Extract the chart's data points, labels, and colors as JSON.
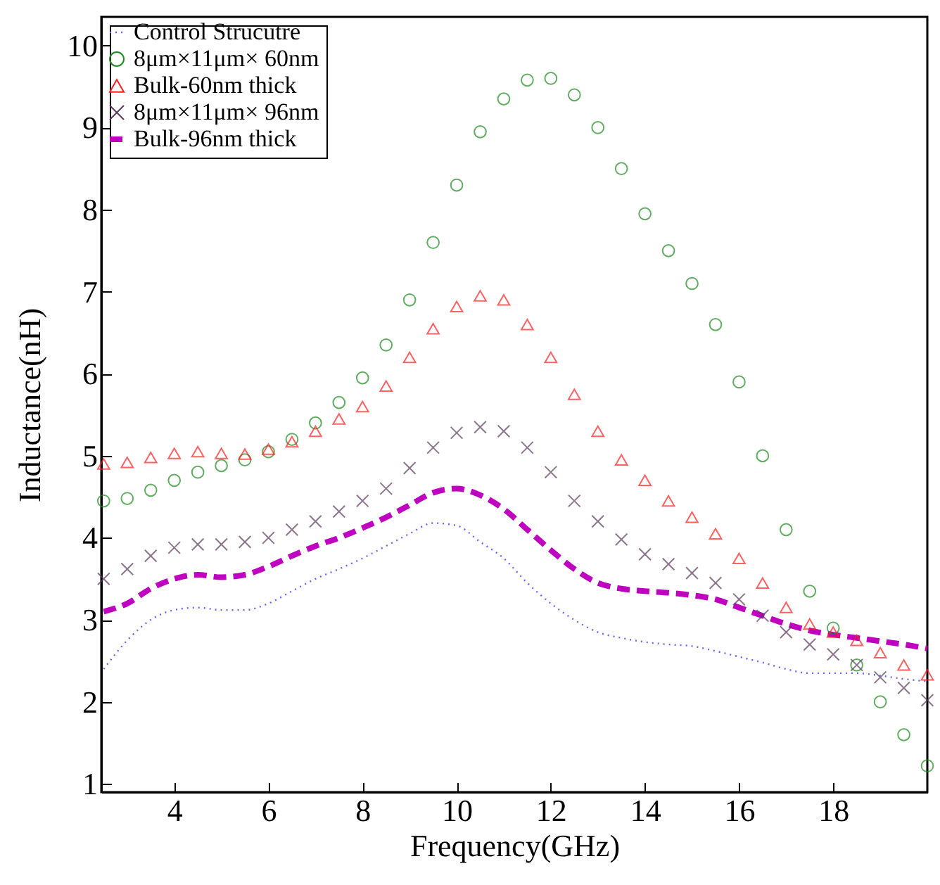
{
  "chart_data": {
    "type": "scatter",
    "xlabel": "Frequency(GHz)",
    "ylabel": "Inductance(nH)",
    "xlim": [
      2.45,
      20
    ],
    "ylim": [
      0.9,
      10.35
    ],
    "xticks": [
      4,
      6,
      8,
      10,
      12,
      14,
      16,
      18
    ],
    "yticks": [
      1,
      2,
      3,
      4,
      5,
      6,
      7,
      8,
      9,
      10
    ],
    "grid": false,
    "legend": "top left",
    "x": [
      2.5,
      3,
      3.5,
      4,
      4.5,
      5,
      5.5,
      6,
      6.5,
      7,
      7.5,
      8,
      8.5,
      9,
      9.5,
      10,
      10.5,
      11,
      11.5,
      12,
      12.5,
      13,
      13.5,
      14,
      14.5,
      15,
      15.5,
      16,
      16.5,
      17,
      17.5,
      18,
      18.5,
      19,
      19.5,
      20
    ],
    "series": [
      {
        "name": "Control Strucutre",
        "type": "line",
        "line_style": "dotted",
        "color": "#6666ff",
        "values": [
          2.4,
          2.75,
          3.0,
          3.12,
          3.15,
          3.12,
          3.12,
          3.2,
          3.35,
          3.5,
          3.62,
          3.75,
          3.9,
          4.05,
          4.18,
          4.15,
          3.95,
          3.75,
          3.45,
          3.2,
          3.0,
          2.85,
          2.78,
          2.73,
          2.7,
          2.68,
          2.62,
          2.55,
          2.48,
          2.4,
          2.35,
          2.35,
          2.35,
          2.32,
          2.28,
          2.25
        ]
      },
      {
        "name": "8μm×11μm× 60nm",
        "marker": "circle",
        "color": "#228b22",
        "values": [
          4.45,
          4.48,
          4.58,
          4.7,
          4.8,
          4.88,
          4.95,
          5.05,
          5.2,
          5.4,
          5.65,
          5.95,
          6.35,
          6.9,
          7.6,
          8.3,
          8.95,
          9.35,
          9.58,
          9.6,
          9.4,
          9.0,
          8.5,
          7.95,
          7.5,
          7.1,
          6.6,
          5.9,
          5.0,
          4.1,
          3.35,
          2.9,
          2.45,
          2.0,
          1.6,
          1.22
        ]
      },
      {
        "name": "Bulk-60nm thick",
        "marker": "triangle",
        "color": "#ff2020",
        "values": [
          4.9,
          4.92,
          4.98,
          5.03,
          5.05,
          5.03,
          5.02,
          5.08,
          5.17,
          5.3,
          5.45,
          5.6,
          5.85,
          6.2,
          6.55,
          6.82,
          6.95,
          6.9,
          6.6,
          6.2,
          5.75,
          5.3,
          4.95,
          4.7,
          4.45,
          4.25,
          4.05,
          3.75,
          3.45,
          3.15,
          2.95,
          2.85,
          2.75,
          2.6,
          2.45,
          2.33
        ]
      },
      {
        "name": "8μm×11μm× 96nm",
        "marker": "cross",
        "color": "#5c3c5c",
        "values": [
          3.5,
          3.62,
          3.78,
          3.88,
          3.92,
          3.92,
          3.95,
          4.0,
          4.1,
          4.2,
          4.32,
          4.45,
          4.6,
          4.85,
          5.1,
          5.28,
          5.35,
          5.3,
          5.1,
          4.8,
          4.45,
          4.2,
          3.98,
          3.8,
          3.68,
          3.57,
          3.45,
          3.25,
          3.05,
          2.85,
          2.7,
          2.58,
          2.45,
          2.3,
          2.17,
          2.02
        ]
      },
      {
        "name": "Bulk-96nm thick",
        "type": "line",
        "line_style": "dashed",
        "color": "#c000c0",
        "values": [
          3.1,
          3.2,
          3.38,
          3.5,
          3.55,
          3.52,
          3.55,
          3.65,
          3.78,
          3.9,
          4.0,
          4.12,
          4.25,
          4.4,
          4.55,
          4.6,
          4.52,
          4.35,
          4.1,
          3.85,
          3.62,
          3.45,
          3.38,
          3.35,
          3.33,
          3.3,
          3.25,
          3.15,
          3.05,
          2.95,
          2.87,
          2.82,
          2.78,
          2.74,
          2.7,
          2.65
        ]
      }
    ]
  }
}
